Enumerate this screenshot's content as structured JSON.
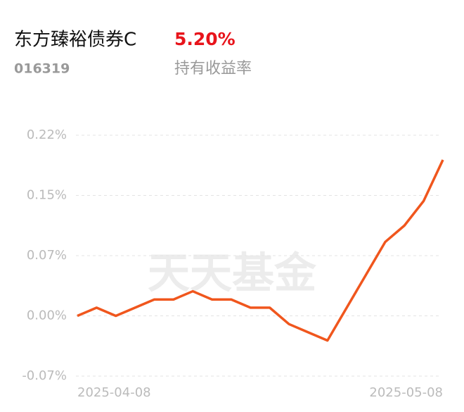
{
  "header": {
    "title": "东方臻裕债券C",
    "return": "5.20%",
    "code": "016319",
    "return_label": "持有收益率"
  },
  "watermark": "天天基金",
  "chart_data": {
    "type": "line",
    "categories": [
      "2025-04-08",
      null,
      null,
      null,
      null,
      null,
      null,
      null,
      null,
      null,
      null,
      null,
      null,
      null,
      null,
      null,
      null,
      null,
      null,
      "2025-05-08"
    ],
    "values": [
      0,
      0.01,
      0,
      0.01,
      0.02,
      0.02,
      0.03,
      0.02,
      0.02,
      0.01,
      0.01,
      -0.01,
      -0.02,
      -0.03,
      0.01,
      0.05,
      0.09,
      0.11,
      0.14,
      0.19
    ],
    "color": "#f0561d",
    "ylim": [
      -0.0733,
      0.22
    ],
    "yticks": [
      {
        "value": 0.22,
        "label": "0.22%"
      },
      {
        "value": 0.1467,
        "label": "0.15%"
      },
      {
        "value": 0.0733,
        "label": "0.07%"
      },
      {
        "value": 0,
        "label": "0.00%"
      },
      {
        "value": -0.0733,
        "label": "-0.07%"
      }
    ],
    "grid": true
  }
}
